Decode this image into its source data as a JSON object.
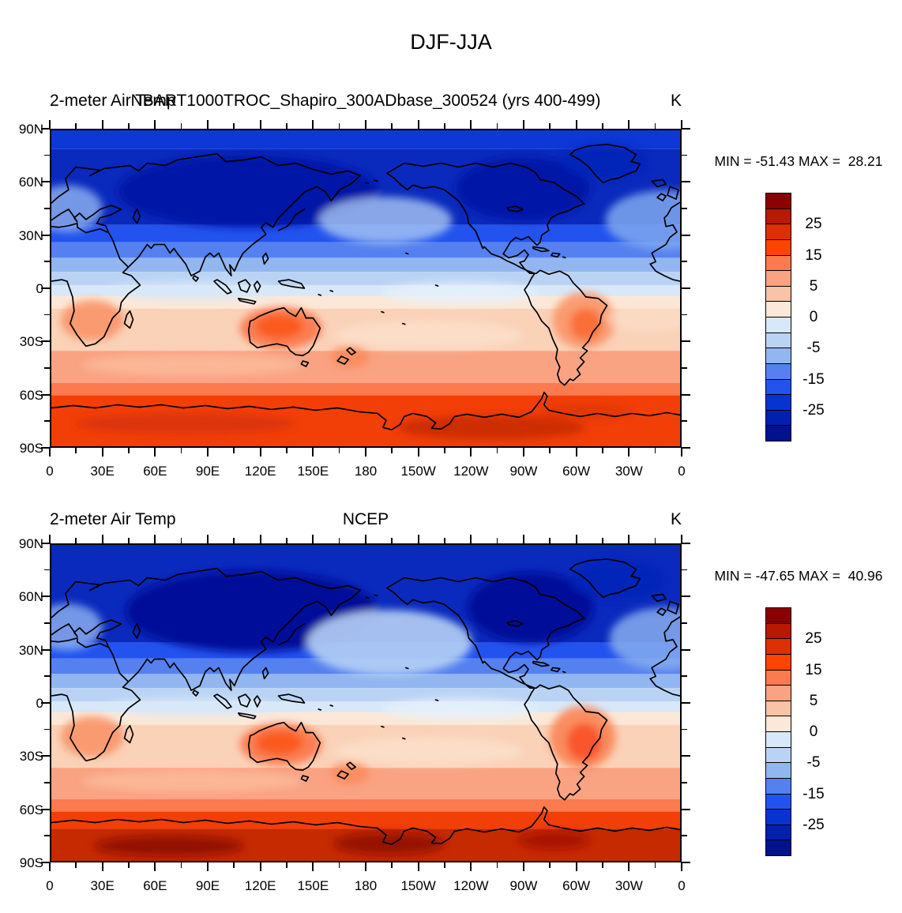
{
  "figure_title": "DJF-JJA",
  "panels": [
    {
      "id": "model",
      "left_title": "2-meter Air Temp",
      "center_title": "NBART1000TROC_Shapiro_300ADbase_300524 (yrs 400-499)",
      "right_title": "K",
      "stats": "MIN = -51.43 MAX =  28.21"
    },
    {
      "id": "ncep",
      "left_title": "2-meter Air Temp",
      "center_title": "NCEP",
      "right_title": "K",
      "stats": "MIN = -47.65 MAX =  40.96"
    }
  ],
  "axes": {
    "lon_tick_labels": [
      "0",
      "30E",
      "60E",
      "90E",
      "120E",
      "150E",
      "180",
      "150W",
      "120W",
      "90W",
      "60W",
      "30W",
      "0"
    ],
    "lat_tick_labels": [
      "90N",
      "60N",
      "30N",
      "0",
      "30S",
      "60S",
      "90S"
    ]
  },
  "colorbar": {
    "colors": [
      "#8B0000",
      "#B81A00",
      "#DC3000",
      "#FF4400",
      "#FB7A4E",
      "#F9A383",
      "#F9C3A5",
      "#FCE8D8",
      "#D8E8F8",
      "#BAD3F5",
      "#92B6F0",
      "#5581F0",
      "#2353EE",
      "#0733D0",
      "#0020B0",
      "#00128C"
    ],
    "tick_labels": [
      "25",
      "15",
      "5",
      "0",
      "-5",
      "-15",
      "-25"
    ],
    "tick_boundaries": [
      2,
      4,
      6,
      8,
      10,
      12,
      14
    ],
    "levels": [
      -30,
      -25,
      -20,
      -15,
      -10,
      -5,
      -2.5,
      0,
      2.5,
      5,
      10,
      15,
      20,
      25,
      30
    ]
  },
  "chart_data": [
    {
      "type": "filled_contour_map",
      "title": "NBART1000TROC_Shapiro_300ADbase_300524 (yrs 400-499)",
      "variable": "2-meter Air Temp",
      "season_difference": "DJF-JJA",
      "units": "K",
      "min": -51.43,
      "max": 28.21,
      "projection": "cylindrical-equidistant 0E-360E, 90N-90S",
      "contour_levels": [
        -30,
        -25,
        -20,
        -15,
        -10,
        -5,
        -2.5,
        0,
        2.5,
        5,
        10,
        15,
        20,
        25,
        30
      ],
      "palette_top_to_bottom": [
        "#8B0000",
        "#B81A00",
        "#DC3000",
        "#FF4400",
        "#FB7A4E",
        "#F9A383",
        "#F9C3A5",
        "#FCE8D8",
        "#D8E8F8",
        "#BAD3F5",
        "#92B6F0",
        "#5581F0",
        "#2353EE",
        "#0733D0",
        "#0020B0",
        "#00128C"
      ],
      "lon_ticks": [
        "0",
        "30E",
        "60E",
        "90E",
        "120E",
        "150E",
        "180",
        "150W",
        "120W",
        "90W",
        "60W",
        "30W",
        "0"
      ],
      "lat_ticks": [
        "90N",
        "60N",
        "30N",
        "0",
        "30S",
        "60S",
        "90S"
      ],
      "approx_zonal_mean_K": {
        "90N": -26,
        "75N": -29,
        "60N": -27,
        "45N": -16,
        "30N": -8,
        "15N": -2,
        "0": 1,
        "15S": 3,
        "30S": 5,
        "45S": 4,
        "60S": 11,
        "75S": 20,
        "90S": 18
      }
    },
    {
      "type": "filled_contour_map",
      "title": "NCEP",
      "variable": "2-meter Air Temp",
      "season_difference": "DJF-JJA",
      "units": "K",
      "min": -47.65,
      "max": 40.96,
      "projection": "cylindrical-equidistant 0E-360E, 90N-90S",
      "contour_levels": [
        -30,
        -25,
        -20,
        -15,
        -10,
        -5,
        -2.5,
        0,
        2.5,
        5,
        10,
        15,
        20,
        25,
        30
      ],
      "palette_top_to_bottom": [
        "#8B0000",
        "#B81A00",
        "#DC3000",
        "#FF4400",
        "#FB7A4E",
        "#F9A383",
        "#F9C3A5",
        "#FCE8D8",
        "#D8E8F8",
        "#BAD3F5",
        "#92B6F0",
        "#5581F0",
        "#2353EE",
        "#0733D0",
        "#0020B0",
        "#00128C"
      ],
      "lon_ticks": [
        "0",
        "30E",
        "60E",
        "90E",
        "120E",
        "150E",
        "180",
        "150W",
        "120W",
        "90W",
        "60W",
        "30W",
        "0"
      ],
      "lat_ticks": [
        "90N",
        "60N",
        "30N",
        "0",
        "30S",
        "60S",
        "90S"
      ],
      "approx_zonal_mean_K": {
        "90N": -25,
        "75N": -28,
        "60N": -26,
        "45N": -15,
        "30N": -8,
        "15N": -2,
        "0": 1,
        "15S": 3,
        "30S": 6,
        "45S": 4,
        "60S": 14,
        "75S": 25,
        "90S": 28
      }
    }
  ]
}
